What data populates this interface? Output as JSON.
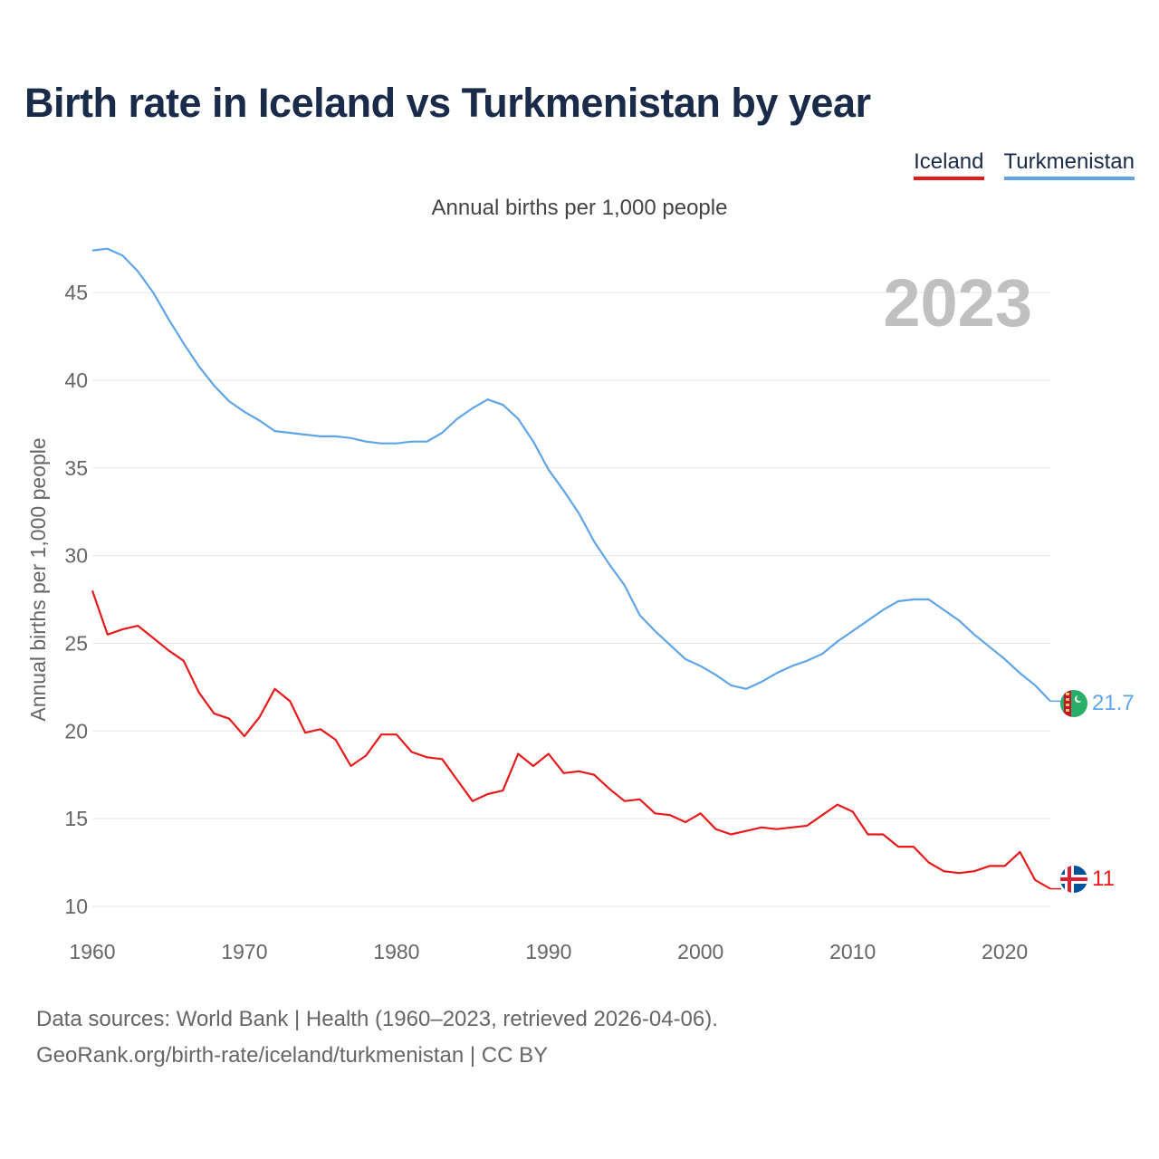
{
  "chart_data": {
    "type": "line",
    "title": "Birth rate in Iceland vs Turkmenistan by year",
    "subtitle": "Annual births per 1,000 people",
    "ylabel": "Annual births per 1,000 people",
    "xlabel": "",
    "year_label": "2023",
    "xlim": [
      1960,
      2023
    ],
    "ylim": [
      8.5,
      48
    ],
    "x_ticks": [
      1960,
      1970,
      1980,
      1990,
      2000,
      2010,
      2020
    ],
    "y_ticks": [
      10,
      15,
      20,
      25,
      30,
      35,
      40,
      45
    ],
    "x": [
      1960,
      1961,
      1962,
      1963,
      1964,
      1965,
      1966,
      1967,
      1968,
      1969,
      1970,
      1971,
      1972,
      1973,
      1974,
      1975,
      1976,
      1977,
      1978,
      1979,
      1980,
      1981,
      1982,
      1983,
      1984,
      1985,
      1986,
      1987,
      1988,
      1989,
      1990,
      1991,
      1992,
      1993,
      1994,
      1995,
      1996,
      1997,
      1998,
      1999,
      2000,
      2001,
      2002,
      2003,
      2004,
      2005,
      2006,
      2007,
      2008,
      2009,
      2010,
      2011,
      2012,
      2013,
      2014,
      2015,
      2016,
      2017,
      2018,
      2019,
      2020,
      2021,
      2022,
      2023
    ],
    "series": [
      {
        "name": "Iceland",
        "color": "#e8191a",
        "end_label": "11",
        "flag": "iceland-flag",
        "values": [
          28.0,
          25.5,
          25.8,
          26.0,
          25.3,
          24.6,
          24.0,
          22.2,
          21.0,
          20.7,
          19.7,
          20.8,
          22.4,
          21.7,
          19.9,
          20.1,
          19.5,
          18.0,
          18.6,
          19.8,
          19.8,
          18.8,
          18.5,
          18.4,
          17.2,
          16.0,
          16.4,
          16.6,
          18.7,
          18.0,
          18.7,
          17.6,
          17.7,
          17.5,
          16.7,
          16.0,
          16.1,
          15.3,
          15.2,
          14.8,
          15.3,
          14.4,
          14.1,
          14.3,
          14.5,
          14.4,
          14.5,
          14.6,
          15.2,
          15.8,
          15.4,
          14.1,
          14.1,
          13.4,
          13.4,
          12.5,
          12.0,
          11.9,
          12.0,
          12.3,
          12.3,
          13.1,
          11.5,
          11.0
        ]
      },
      {
        "name": "Turkmenistan",
        "color": "#60a5e8",
        "end_label": "21.7",
        "flag": "turkmenistan-flag",
        "values": [
          47.4,
          47.5,
          47.1,
          46.2,
          45.0,
          43.5,
          42.1,
          40.8,
          39.7,
          38.8,
          38.2,
          37.7,
          37.1,
          37.0,
          36.9,
          36.8,
          36.8,
          36.7,
          36.5,
          36.4,
          36.4,
          36.5,
          36.5,
          37.0,
          37.8,
          38.4,
          38.9,
          38.6,
          37.8,
          36.5,
          34.9,
          33.7,
          32.4,
          30.8,
          29.5,
          28.3,
          26.6,
          25.7,
          24.9,
          24.1,
          23.7,
          23.2,
          22.6,
          22.4,
          22.8,
          23.3,
          23.7,
          24.0,
          24.4,
          25.1,
          25.7,
          26.3,
          26.9,
          27.4,
          27.5,
          27.5,
          26.9,
          26.3,
          25.5,
          24.8,
          24.1,
          23.3,
          22.6,
          21.7
        ]
      }
    ]
  },
  "legend": {
    "iceland_label": "Iceland",
    "turkmenistan_label": "Turkmenistan"
  },
  "footer": {
    "line1": "Data sources: World Bank | Health (1960–2023, retrieved 2026-04-06).",
    "line2": "GeoRank.org/birth-rate/iceland/turkmenistan | CC BY"
  },
  "colors": {
    "title": "#1a2b4a",
    "axis_text": "#666666",
    "year_watermark": "#c0c0c0",
    "grid": "#e6e6e6"
  }
}
